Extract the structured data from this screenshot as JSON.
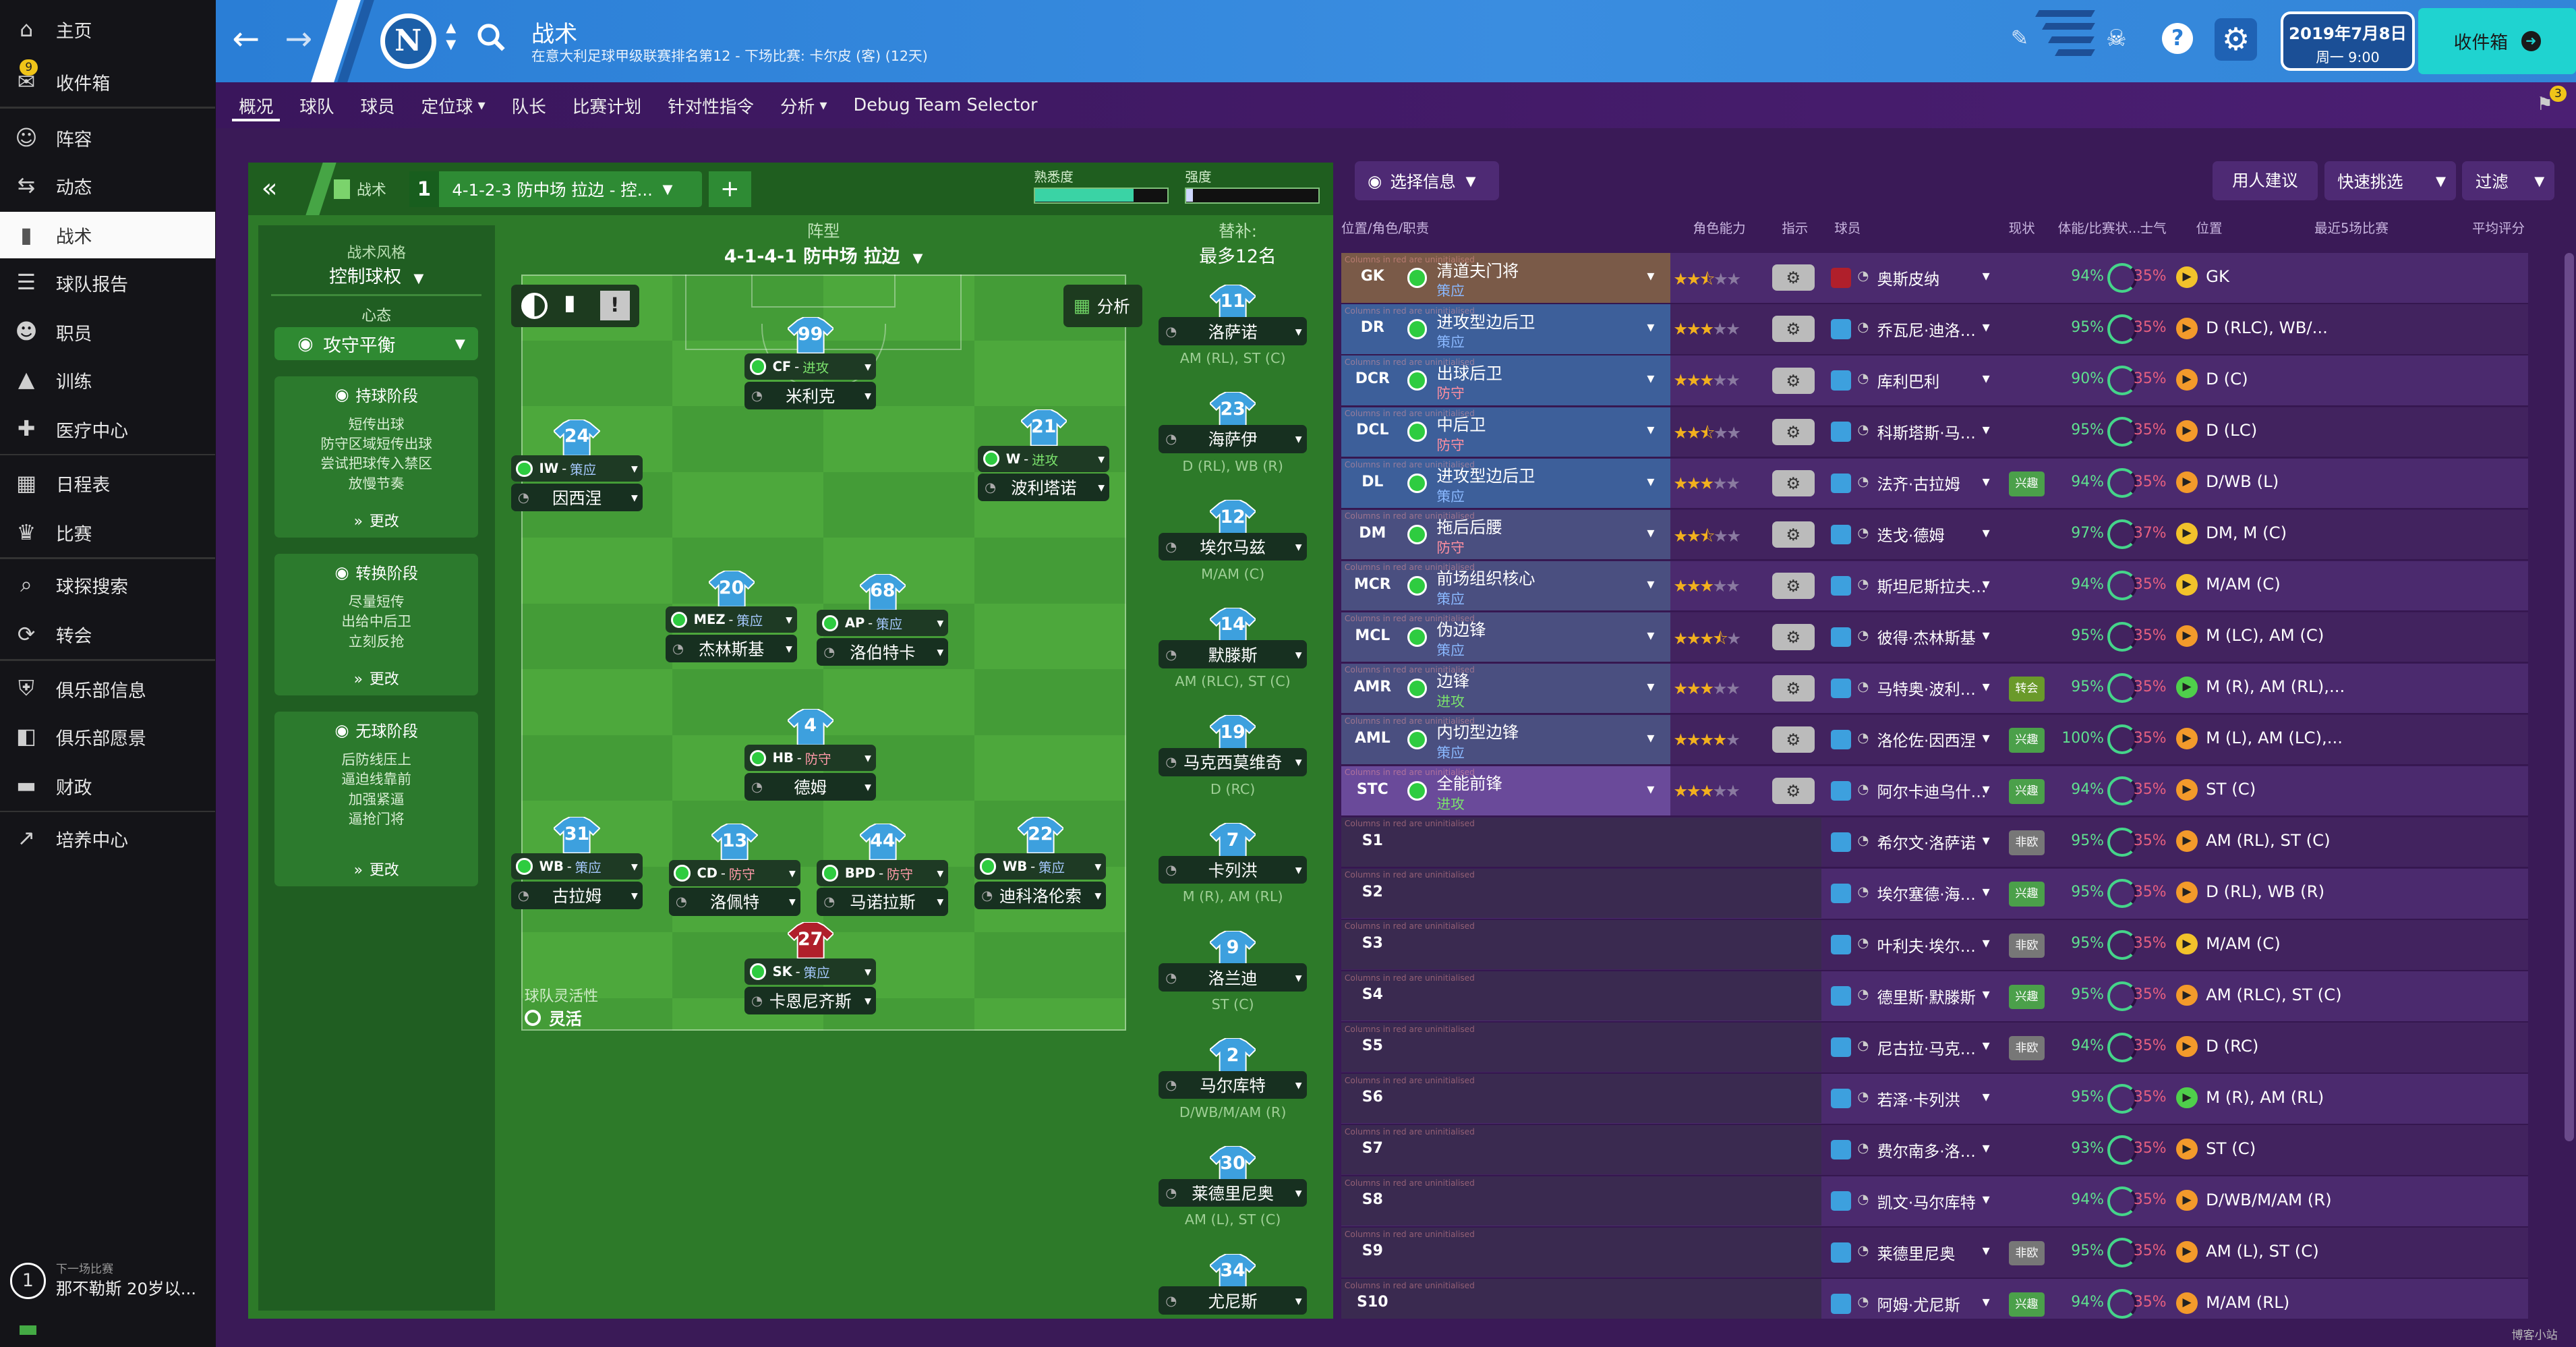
{
  "sidebar": {
    "items": [
      {
        "label": "主页",
        "icon": "home-icon"
      },
      {
        "label": "收件箱",
        "icon": "inbox-icon",
        "badge": "9"
      },
      {
        "label": "阵容",
        "icon": "squad-icon"
      },
      {
        "label": "动态",
        "icon": "dynamics-icon"
      },
      {
        "label": "战术",
        "icon": "tactics-icon",
        "active": true
      },
      {
        "label": "球队报告",
        "icon": "report-icon"
      },
      {
        "label": "职员",
        "icon": "staff-icon"
      },
      {
        "label": "训练",
        "icon": "training-icon"
      },
      {
        "label": "医疗中心",
        "icon": "medical-icon"
      },
      {
        "label": "日程表",
        "icon": "calendar-icon"
      },
      {
        "label": "比赛",
        "icon": "trophy-icon"
      },
      {
        "label": "球探搜索",
        "icon": "scout-icon"
      },
      {
        "label": "转会",
        "icon": "transfer-icon"
      },
      {
        "label": "俱乐部信息",
        "icon": "shield-icon"
      },
      {
        "label": "俱乐部愿景",
        "icon": "vision-icon"
      },
      {
        "label": "财政",
        "icon": "finance-icon"
      },
      {
        "label": "培养中心",
        "icon": "development-icon"
      }
    ],
    "next_match_label": "下一场比赛",
    "next_match_text": "那不勒斯 20岁以...",
    "next_match_count": "1"
  },
  "header": {
    "title": "战术",
    "subtitle": "在意大利足球甲级联赛排名第12 - 下场比赛: 卡尔皮 (客) (12天)",
    "date": "2019年7月8日",
    "day_time": "周一 9:00",
    "inbox_button": "收件箱",
    "tabs": [
      "概况",
      "球队",
      "球员",
      "定位球",
      "队长",
      "比赛计划",
      "针对性指令",
      "分析",
      "Debug Team Selector"
    ],
    "tabs_with_dropdown": [
      "定位球",
      "分析"
    ],
    "notification_count": "3"
  },
  "tactic_bar": {
    "tab_label": "战术",
    "slot_number": "1",
    "tactic_name": "4-1-2-3 防中场 拉边 - 控...",
    "familiarity_label": "熟悉度",
    "familiarity_value": 0.75,
    "strength_label": "强度",
    "strength_value": 0.05
  },
  "style_panel": {
    "style_label": "战术风格",
    "style_value": "控制球权",
    "mentality_label": "心态",
    "mentality_value": "攻守平衡",
    "phases": [
      {
        "title": "持球阶段",
        "lines": [
          "短传出球",
          "防守区域短传出球",
          "尝试把球传入禁区",
          "放慢节奏"
        ],
        "more": "更改"
      },
      {
        "title": "转换阶段",
        "lines": [
          "尽量短传",
          "出给中后卫",
          "立刻反抢"
        ],
        "more": "更改"
      },
      {
        "title": "无球阶段",
        "lines": [
          "后防线压上",
          "逼迫线靠前",
          "加强紧逼",
          "逼抢门将"
        ],
        "more": "更改"
      }
    ]
  },
  "formation": {
    "label": "阵型",
    "value": "4-1-4-1 防中场 拉边",
    "analysis_button": "分析",
    "fluidity_label": "球队灵活性",
    "fluidity_value": "灵活",
    "players": [
      {
        "num": "99",
        "role": "CF",
        "duty": "进攻",
        "name": "米利克",
        "color": "blue"
      },
      {
        "num": "24",
        "role": "IW",
        "duty": "策应",
        "name": "因西涅",
        "color": "blue"
      },
      {
        "num": "21",
        "role": "W",
        "duty": "进攻",
        "name": "波利塔诺",
        "color": "blue"
      },
      {
        "num": "20",
        "role": "MEZ",
        "duty": "策应",
        "name": "杰林斯基",
        "color": "blue"
      },
      {
        "num": "68",
        "role": "AP",
        "duty": "策应",
        "name": "洛伯特卡",
        "color": "blue"
      },
      {
        "num": "4",
        "role": "HB",
        "duty": "防守",
        "name": "德姆",
        "color": "blue"
      },
      {
        "num": "31",
        "role": "WB",
        "duty": "策应",
        "name": "古拉姆",
        "color": "blue"
      },
      {
        "num": "13",
        "role": "CD",
        "duty": "防守",
        "name": "洛佩特",
        "color": "blue"
      },
      {
        "num": "44",
        "role": "BPD",
        "duty": "防守",
        "name": "马诺拉斯",
        "color": "blue"
      },
      {
        "num": "22",
        "role": "WB",
        "duty": "策应",
        "name": "迪科洛伦索",
        "color": "blue"
      },
      {
        "num": "27",
        "role": "SK",
        "duty": "策应",
        "name": "卡恩尼齐斯",
        "color": "red"
      }
    ]
  },
  "subs": {
    "label": "替补:",
    "max_label": "最多12名",
    "players": [
      {
        "num": "11",
        "name": "洛萨诺",
        "pos": "AM (RL), ST (C)"
      },
      {
        "num": "23",
        "name": "海萨伊",
        "pos": "D (RL), WB (R)"
      },
      {
        "num": "12",
        "name": "埃尔马兹",
        "pos": "M/AM (C)"
      },
      {
        "num": "14",
        "name": "默滕斯",
        "pos": "AM (RLC), ST (C)"
      },
      {
        "num": "19",
        "name": "马克西莫维奇",
        "pos": "D (RC)"
      },
      {
        "num": "7",
        "name": "卡列洪",
        "pos": "M (R), AM (RL)"
      },
      {
        "num": "9",
        "name": "洛兰迪",
        "pos": "ST (C)"
      },
      {
        "num": "2",
        "name": "马尔库特",
        "pos": "D/WB/M/AM (R)"
      },
      {
        "num": "30",
        "name": "莱德里尼奥",
        "pos": "AM (L), ST (C)"
      },
      {
        "num": "34",
        "name": "尤尼斯",
        "pos": ""
      }
    ]
  },
  "selection": {
    "info_button": "选择信息",
    "suggest_button": "用人建议",
    "quick_pick_button": "快速挑选",
    "filter_button": "过滤",
    "columns": [
      "位置/角色/职责",
      "角色能力",
      "指示",
      "球员",
      "现状",
      "体能/比赛状...",
      "士气",
      "位置",
      "最近5场比赛",
      "平均评分"
    ],
    "uninit_text": "Columns in red are uninitialised",
    "rows": [
      {
        "pos": "GK",
        "role": "清道夫门将",
        "duty": "策应",
        "stars": 2.5,
        "player": "奥斯皮纳",
        "status": "",
        "cond": "94%",
        "sharp": "35%",
        "position": "GK",
        "morale": "yellow",
        "shade": "gk"
      },
      {
        "pos": "DR",
        "role": "进攻型边后卫",
        "duty": "策应",
        "stars": 3,
        "player": "乔瓦尼·迪洛伦佐",
        "status": "",
        "cond": "95%",
        "sharp": "35%",
        "position": "D (RLC), WB/...",
        "morale": "orange",
        "shade": "def"
      },
      {
        "pos": "DCR",
        "role": "出球后卫",
        "duty": "防守",
        "stars": 3,
        "player": "库利巴利",
        "status": "",
        "cond": "90%",
        "sharp": "35%",
        "position": "D (C)",
        "morale": "orange",
        "shade": "def"
      },
      {
        "pos": "DCL",
        "role": "中后卫",
        "duty": "防守",
        "stars": 2.5,
        "player": "科斯塔斯·马诺拉斯",
        "status": "",
        "cond": "95%",
        "sharp": "35%",
        "position": "D (LC)",
        "morale": "orange",
        "shade": "def"
      },
      {
        "pos": "DL",
        "role": "进攻型边后卫",
        "duty": "策应",
        "stars": 3,
        "player": "法齐·古拉姆",
        "status": "兴趣",
        "cond": "94%",
        "sharp": "35%",
        "position": "D/WB (L)",
        "morale": "orange",
        "shade": "def"
      },
      {
        "pos": "DM",
        "role": "拖后后腰",
        "duty": "防守",
        "stars": 2.5,
        "player": "迭戈·德姆",
        "status": "",
        "cond": "97%",
        "sharp": "37%",
        "position": "DM, M (C)",
        "morale": "yellow",
        "shade": "mid"
      },
      {
        "pos": "MCR",
        "role": "前场组织核心",
        "duty": "策应",
        "stars": 3,
        "player": "斯坦尼斯拉夫·洛博特卡",
        "status": "",
        "cond": "94%",
        "sharp": "35%",
        "position": "M/AM (C)",
        "morale": "yellow",
        "shade": "mid"
      },
      {
        "pos": "MCL",
        "role": "伪边锋",
        "duty": "策应",
        "stars": 3.5,
        "player": "彼得·杰林斯基",
        "status": "",
        "cond": "95%",
        "sharp": "35%",
        "position": "M (LC), AM (C)",
        "morale": "orange",
        "shade": "mid"
      },
      {
        "pos": "AMR",
        "role": "边锋",
        "duty": "进攻",
        "stars": 3,
        "player": "马特奥·波利塔诺",
        "status": "转会",
        "cond": "95%",
        "sharp": "35%",
        "position": "M (R), AM (RL),...",
        "morale": "green",
        "shade": "mid"
      },
      {
        "pos": "AML",
        "role": "内切型边锋",
        "duty": "策应",
        "stars": 4,
        "player": "洛伦佐·因西涅",
        "status": "兴趣",
        "cond": "100%",
        "sharp": "35%",
        "position": "M (L), AM (LC),...",
        "morale": "orange",
        "shade": "mid"
      },
      {
        "pos": "STC",
        "role": "全能前锋",
        "duty": "进攻",
        "stars": 3,
        "player": "阿尔卡迪乌什·米利克",
        "status": "兴趣",
        "cond": "94%",
        "sharp": "35%",
        "position": "ST (C)",
        "morale": "orange",
        "shade": "att"
      },
      {
        "pos": "S1",
        "player": "希尔文·洛萨诺",
        "status": "非欧",
        "cond": "95%",
        "sharp": "35%",
        "position": "AM (RL), ST (C)",
        "morale": "orange"
      },
      {
        "pos": "S2",
        "player": "埃尔塞德·海萨伊",
        "status": "兴趣",
        "cond": "95%",
        "sharp": "35%",
        "position": "D (RL), WB (R)",
        "morale": "orange"
      },
      {
        "pos": "S3",
        "player": "叶利夫·埃尔马兹",
        "status": "非欧",
        "cond": "95%",
        "sharp": "35%",
        "position": "M/AM (C)",
        "morale": "yellow"
      },
      {
        "pos": "S4",
        "player": "德里斯·默滕斯",
        "status": "兴趣",
        "cond": "95%",
        "sharp": "35%",
        "position": "AM (RLC), ST (C)",
        "morale": "orange"
      },
      {
        "pos": "S5",
        "player": "尼古拉·马克西莫维奇",
        "status": "非欧",
        "cond": "94%",
        "sharp": "35%",
        "position": "D (RC)",
        "morale": "orange"
      },
      {
        "pos": "S6",
        "player": "若泽·卡列洪",
        "status": "",
        "cond": "95%",
        "sharp": "35%",
        "position": "M (R), AM (RL)",
        "morale": "green"
      },
      {
        "pos": "S7",
        "player": "费尔南多·洛兰迪",
        "status": "",
        "cond": "93%",
        "sharp": "35%",
        "position": "ST (C)",
        "morale": "orange"
      },
      {
        "pos": "S8",
        "player": "凯文·马尔库特",
        "status": "",
        "cond": "94%",
        "sharp": "35%",
        "position": "D/WB/M/AM (R)",
        "morale": "orange"
      },
      {
        "pos": "S9",
        "player": "莱德里尼奥",
        "status": "非欧",
        "cond": "95%",
        "sharp": "35%",
        "position": "AM (L), ST (C)",
        "morale": "orange"
      },
      {
        "pos": "S10",
        "player": "阿姆·尤尼斯",
        "status": "兴趣",
        "cond": "94%",
        "sharp": "35%",
        "position": "M/AM (RL)",
        "morale": "orange"
      }
    ]
  },
  "watermark": "博客小站"
}
